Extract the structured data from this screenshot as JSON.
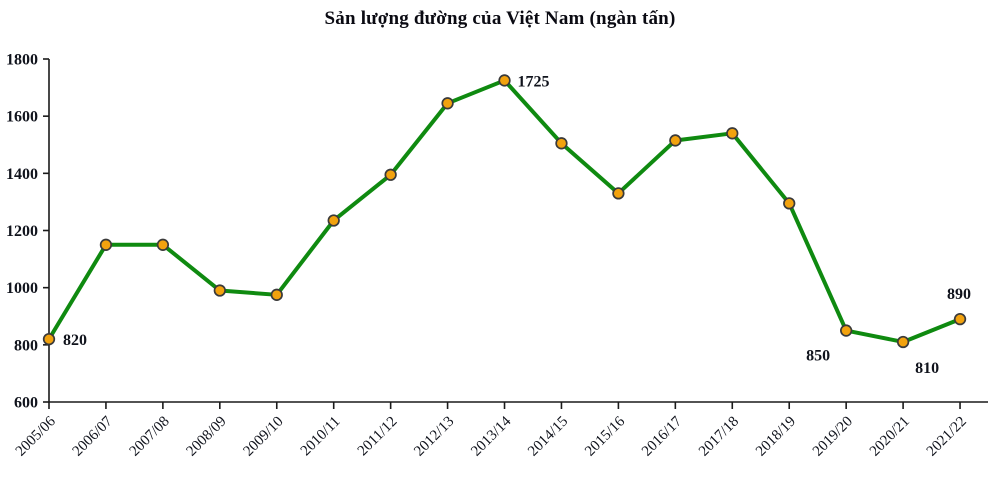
{
  "title": "Sản lượng đường của Việt Nam (ngàn tấn)",
  "chart_data": {
    "type": "line",
    "title": "Sản lượng đường của Việt Nam (ngàn tấn)",
    "categories": [
      "2005/06",
      "2006/07",
      "2007/08",
      "2008/09",
      "2009/10",
      "2010/11",
      "2011/12",
      "2012/13",
      "2013/14",
      "2014/15",
      "2015/16",
      "2016/17",
      "2017/18",
      "2018/19",
      "2019/20",
      "2020/21",
      "2021/22"
    ],
    "values": [
      820,
      1150,
      1150,
      990,
      975,
      1235,
      1395,
      1645,
      1725,
      1505,
      1330,
      1515,
      1540,
      1295,
      850,
      810,
      890
    ],
    "point_labels": {
      "0": "820",
      "8": "1725",
      "14": "850",
      "15": "810",
      "16": "890"
    },
    "xlabel": "",
    "ylabel": "",
    "ylim": [
      600,
      1800
    ],
    "ytick_step": 200,
    "yticks": [
      600,
      800,
      1000,
      1200,
      1400,
      1600,
      1800
    ],
    "grid": false,
    "legend": false,
    "colors": {
      "line": "#0f8a10",
      "marker_fill": "#f2a20e",
      "marker_stroke": "#3a3a3a",
      "axis": "#1a1a1a",
      "tick_label": "#10131c",
      "data_label": "#10131c",
      "title": "#0a0a12"
    }
  }
}
